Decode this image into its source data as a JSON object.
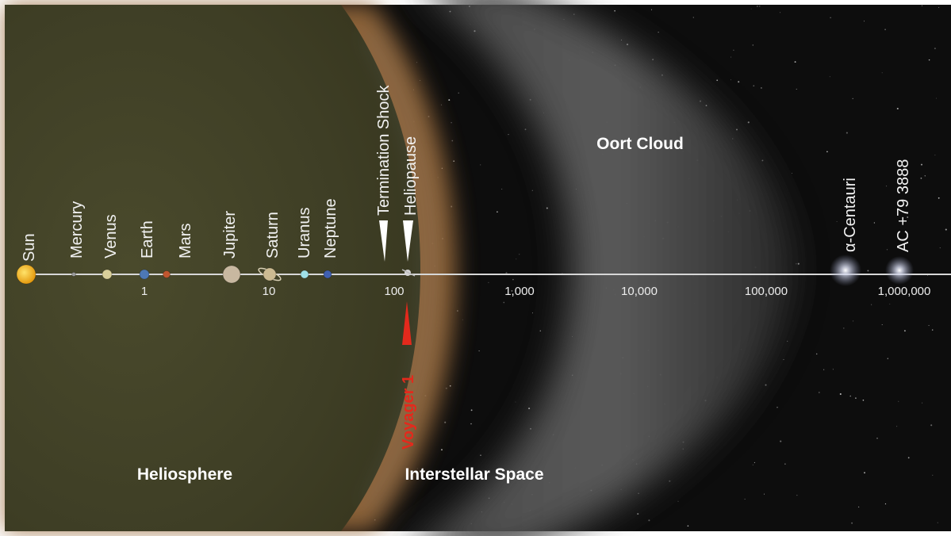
{
  "regions": {
    "heliosphere": "Heliosphere",
    "interstellar": "Interstellar Space",
    "oort": "Oort Cloud"
  },
  "bodies": [
    {
      "key": "sun",
      "label": "Sun",
      "color": "#f2b21d"
    },
    {
      "key": "mercury",
      "label": "Mercury",
      "color": "#9a9a9a"
    },
    {
      "key": "venus",
      "label": "Venus",
      "color": "#d9cf9a"
    },
    {
      "key": "earth",
      "label": "Earth",
      "color": "#4d78b5"
    },
    {
      "key": "mars",
      "label": "Mars",
      "color": "#c0562f"
    },
    {
      "key": "jupiter",
      "label": "Jupiter",
      "color": "#c8b8a0"
    },
    {
      "key": "saturn",
      "label": "Saturn",
      "color": "#cdbb92"
    },
    {
      "key": "uranus",
      "label": "Uranus",
      "color": "#9fe0e8"
    },
    {
      "key": "neptune",
      "label": "Neptune",
      "color": "#3f5fb0"
    }
  ],
  "boundaries": {
    "termination_shock": "Termination Shock",
    "heliopause": "Heliopause"
  },
  "stars": {
    "alpha_centauri": "α-Centauri",
    "ac79": "AC +79 3888"
  },
  "axis_ticks": [
    "1",
    "10",
    "100",
    "1,000",
    "10,000",
    "100,000",
    "1,000,000"
  ],
  "voyager": {
    "label": "Voyager 1",
    "color": "#e4291c"
  }
}
